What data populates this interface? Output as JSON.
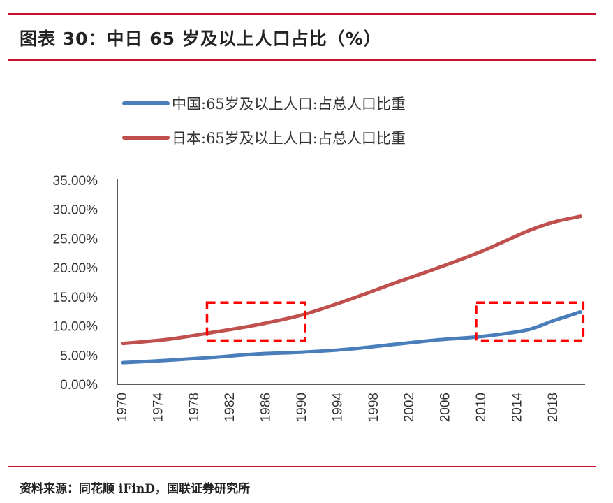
{
  "title": "图表 30：中日 65 岁及以上人口占比（%）",
  "source": "资料来源：同花顺 iFinD，国联证券研究所",
  "colors": {
    "rule": "#c8102e",
    "china": "#4a7ebb",
    "japan": "#c0504d",
    "highlight": "#ff0000"
  },
  "chart_data": {
    "type": "line",
    "title": "",
    "xlabel": "",
    "ylabel": "",
    "ylim": [
      0,
      35
    ],
    "y_ticks": [
      "0.00%",
      "5.00%",
      "10.00%",
      "15.00%",
      "20.00%",
      "25.00%",
      "30.00%",
      "35.00%"
    ],
    "x_ticks": [
      "1970",
      "1974",
      "1978",
      "1982",
      "1986",
      "1990",
      "1994",
      "1998",
      "2002",
      "2006",
      "2010",
      "2014",
      "2018"
    ],
    "legend_position": "top",
    "grid": false,
    "x": [
      1970,
      1975,
      1980,
      1985,
      1990,
      1995,
      2000,
      2005,
      2010,
      2015,
      2018,
      2021
    ],
    "series": [
      {
        "name": "中国:65岁及以上人口:占总人口比重",
        "color": "#4a7ebb",
        "values": [
          3.7,
          4.1,
          4.6,
          5.2,
          5.5,
          6.0,
          6.8,
          7.6,
          8.2,
          9.3,
          10.9,
          12.4
        ]
      },
      {
        "name": "日本:65岁及以上人口:占总人口比重",
        "color": "#c0504d",
        "values": [
          7.0,
          7.7,
          8.9,
          10.2,
          11.9,
          14.4,
          17.2,
          19.9,
          22.8,
          26.2,
          27.8,
          28.8
        ]
      }
    ],
    "highlight_boxes": [
      {
        "x": [
          1980,
          1990
        ],
        "y": [
          7.5,
          14
        ]
      },
      {
        "x": [
          2010,
          2021
        ],
        "y": [
          7.5,
          14
        ]
      }
    ]
  }
}
